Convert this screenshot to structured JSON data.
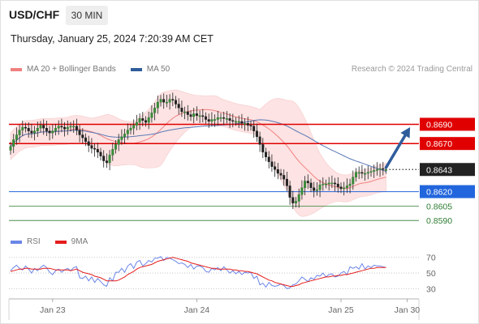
{
  "header": {
    "symbol": "USD/CHF",
    "timeframe": "30 MIN"
  },
  "timestamp": "Thursday, January 25, 2024 7:20:39 AM CET",
  "legend": {
    "items": [
      {
        "label": "MA 20 + Bollinger Bands",
        "color": "#f08080"
      },
      {
        "label": "MA 50",
        "color": "#2f5d9c"
      }
    ],
    "credit": "Research © 2024 Trading Central"
  },
  "rsi_legend": {
    "items": [
      {
        "label": "RSI",
        "color": "#6b86e8"
      },
      {
        "label": "9MA",
        "color": "#e51c1c"
      }
    ]
  },
  "chart_data": [
    {
      "type": "candlestick",
      "price_range": [
        0.8575,
        0.8735
      ],
      "x_labels": [
        {
          "label": "Jan 23",
          "bar": 14
        },
        {
          "label": "Jan 24",
          "bar": 62
        },
        {
          "label": "Jan 25",
          "bar": 110
        },
        {
          "label": "Jan 30",
          "bar": 132
        }
      ],
      "closes": [
        0.8667,
        0.8674,
        0.8679,
        0.8684,
        0.8687,
        0.8686,
        0.8683,
        0.8681,
        0.8683,
        0.8686,
        0.8689,
        0.8686,
        0.8683,
        0.8681,
        0.8683,
        0.8686,
        0.8688,
        0.8687,
        0.8685,
        0.8687,
        0.8688,
        0.8688,
        0.8684,
        0.8679,
        0.8676,
        0.8672,
        0.8668,
        0.8665,
        0.8664,
        0.8661,
        0.8657,
        0.8652,
        0.865,
        0.8658,
        0.8664,
        0.8669,
        0.8674,
        0.8677,
        0.868,
        0.8684,
        0.8686,
        0.8689,
        0.8692,
        0.8696,
        0.8694,
        0.8692,
        0.8697,
        0.8702,
        0.8707,
        0.8713,
        0.8716,
        0.8713,
        0.8713,
        0.8716,
        0.8715,
        0.8711,
        0.8707,
        0.8703,
        0.8703,
        0.87,
        0.8698,
        0.8701,
        0.8699,
        0.8699,
        0.8698,
        0.8695,
        0.8693,
        0.8695,
        0.8695,
        0.8697,
        0.8697,
        0.8696,
        0.8696,
        0.8694,
        0.8693,
        0.8693,
        0.8693,
        0.8691,
        0.8691,
        0.8689,
        0.8688,
        0.8683,
        0.8677,
        0.8669,
        0.8661,
        0.8656,
        0.8651,
        0.8646,
        0.8643,
        0.8639,
        0.8637,
        0.8633,
        0.8626,
        0.8614,
        0.8608,
        0.861,
        0.8617,
        0.8624,
        0.8631,
        0.8629,
        0.8624,
        0.8621,
        0.8622,
        0.8627,
        0.8628,
        0.8628,
        0.8629,
        0.8629,
        0.8628,
        0.8625,
        0.8623,
        0.8624,
        0.8626,
        0.8628,
        0.8635,
        0.864,
        0.864,
        0.8639,
        0.8639,
        0.864,
        0.8641,
        0.8642,
        0.8643,
        0.8644,
        0.8643,
        0.8643
      ],
      "forecast": {
        "from_bar": 125,
        "from_price": 0.8645,
        "to_bar": 133,
        "to_price": 0.8687
      },
      "levels": [
        {
          "price": 0.869,
          "label": "0.8690",
          "color": "#e00000",
          "style": "box"
        },
        {
          "price": 0.867,
          "label": "0.8670",
          "color": "#e00000",
          "style": "box"
        },
        {
          "price": 0.8643,
          "label": "0.8643",
          "color": "#222222",
          "style": "box"
        },
        {
          "price": 0.862,
          "label": "0.8620",
          "color": "#2266dd",
          "style": "box"
        },
        {
          "price": 0.8605,
          "label": "0.8605",
          "color": "#2e7d32",
          "style": "text"
        },
        {
          "price": 0.859,
          "label": "0.8590",
          "color": "#2e7d32",
          "style": "text"
        }
      ]
    },
    {
      "type": "line",
      "indicator": "RSI",
      "ylim": [
        18,
        78
      ],
      "y_ticks": [
        70,
        50,
        30
      ],
      "series": [
        {
          "name": "RSI",
          "color": "#6b86e8",
          "values": [
            53,
            57,
            60,
            56,
            54,
            59,
            55,
            50,
            56,
            53,
            57,
            60,
            57,
            51,
            48,
            53,
            55,
            51,
            54,
            56,
            53,
            57,
            58,
            44,
            43,
            46,
            40,
            45,
            38,
            43,
            39,
            35,
            33,
            44,
            40,
            51,
            51,
            56,
            51,
            59,
            62,
            56,
            64,
            66,
            59,
            62,
            66,
            64,
            69,
            69,
            71,
            66,
            70,
            69,
            67,
            65,
            62,
            63,
            61,
            57,
            61,
            55,
            59,
            59,
            57,
            52,
            51,
            56,
            54,
            57,
            53,
            58,
            54,
            50,
            53,
            49,
            52,
            48,
            51,
            50,
            51,
            43,
            46,
            35,
            37,
            32,
            38,
            34,
            33,
            34,
            36,
            34,
            30,
            31,
            35,
            36,
            40,
            45,
            42,
            39,
            44,
            42,
            47,
            46,
            50,
            45,
            48,
            49,
            45,
            46,
            50,
            52,
            48,
            58,
            56,
            58,
            55,
            62,
            55,
            59,
            57,
            60,
            59,
            59,
            58,
            57
          ]
        },
        {
          "name": "9MA",
          "color": "#e51c1c",
          "values": [
            52,
            53,
            54,
            55,
            55,
            56,
            56,
            55,
            55,
            55,
            55,
            56,
            56,
            56,
            55,
            54,
            54,
            54,
            54,
            54,
            53,
            54,
            55,
            53,
            51,
            50,
            49,
            48,
            46,
            45,
            44,
            42,
            40,
            40,
            40,
            40,
            41,
            43,
            45,
            48,
            50,
            52,
            55,
            57,
            58,
            59,
            60,
            61,
            63,
            65,
            66,
            67,
            68,
            69,
            70,
            69,
            68,
            67,
            66,
            65,
            63,
            62,
            61,
            60,
            59,
            58,
            57,
            56,
            56,
            55,
            55,
            55,
            55,
            55,
            54,
            54,
            53,
            53,
            52,
            52,
            51,
            50,
            49,
            47,
            45,
            43,
            41,
            40,
            38,
            37,
            36,
            35,
            34,
            33,
            33,
            34,
            35,
            37,
            38,
            39,
            40,
            41,
            42,
            43,
            44,
            45,
            45,
            46,
            46,
            47,
            47,
            48,
            48,
            49,
            50,
            51,
            52,
            53,
            54,
            55,
            56,
            56,
            57,
            57,
            57,
            57
          ]
        }
      ]
    }
  ]
}
